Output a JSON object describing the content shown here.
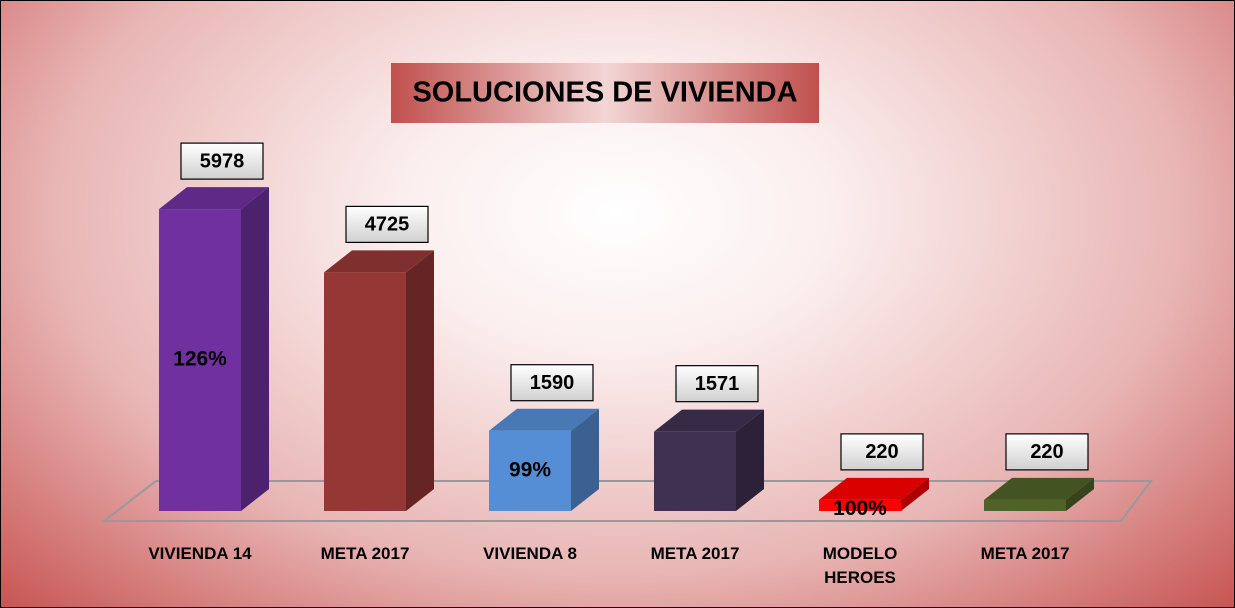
{
  "chart_data": {
    "type": "bar3d",
    "title": "SOLUCIONES DE VIVIENDA",
    "categories": [
      "VIVIENDA 14",
      "META 2017",
      "VIVIENDA 8",
      "META 2017",
      "MODELO HEROES",
      "META 2017"
    ],
    "values": [
      5978,
      4725,
      1590,
      1571,
      220,
      220
    ],
    "colors": [
      "#7030a0",
      "#953735",
      "#558ed5",
      "#403152",
      "#ff0000",
      "#4f6228"
    ],
    "percent_labels": [
      "126%",
      null,
      "99%",
      null,
      "100%",
      null
    ],
    "ylim": [
      0,
      6000
    ]
  }
}
